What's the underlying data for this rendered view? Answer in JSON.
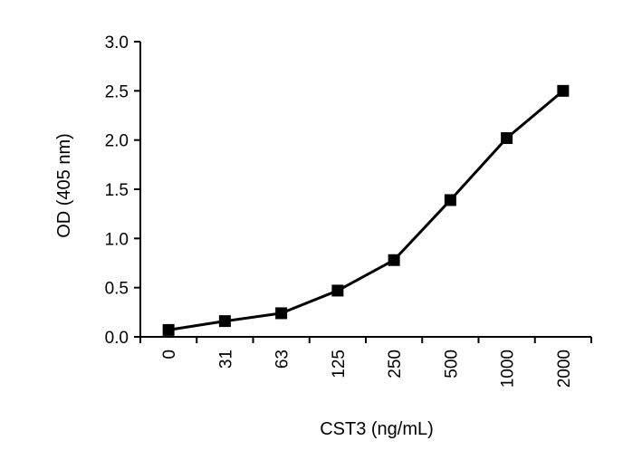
{
  "chart_data": {
    "type": "line",
    "xlabel": "CST3 (ng/mL)",
    "ylabel": "OD (405 nm)",
    "categories": [
      "0",
      "31",
      "63",
      "125",
      "250",
      "500",
      "1000",
      "2000"
    ],
    "series": [
      {
        "values": [
          0.07,
          0.16,
          0.24,
          0.47,
          0.78,
          1.39,
          2.02,
          2.5
        ]
      }
    ],
    "ylim": [
      0,
      3.0
    ],
    "yticks": [
      "0.0",
      "0.5",
      "1.0",
      "1.5",
      "2.0",
      "2.5",
      "3.0"
    ],
    "grid": false,
    "legend": "none",
    "marker": "square",
    "line_color": "#000000"
  }
}
